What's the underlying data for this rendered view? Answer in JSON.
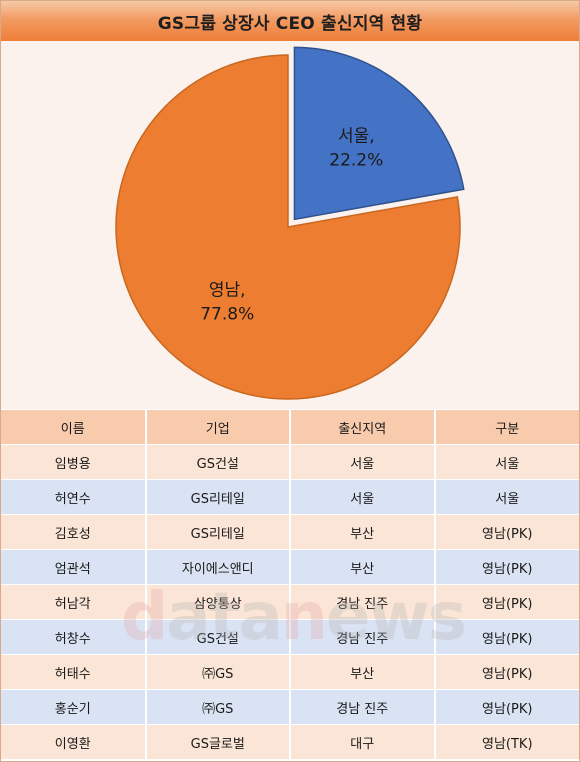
{
  "title": "GS그룹 상장사 CEO 출신지역 현황",
  "colors": {
    "seoul": "#4472c4",
    "yeongnam": "#ed7d31",
    "header_row": "#f8cbad",
    "row_peach": "#fbe5d6",
    "row_blue": "#dae3f3",
    "chart_bg": "#fbf1ed"
  },
  "chart_data": {
    "type": "pie",
    "title": "GS그룹 상장사 CEO 출신지역 현황",
    "slices": [
      {
        "label": "서울",
        "value": 22.2,
        "display": "22.2%",
        "color": "#4472c4"
      },
      {
        "label": "영남",
        "value": 77.8,
        "display": "77.8%",
        "color": "#ed7d31"
      }
    ],
    "legend": "none",
    "data_labels": "category, percent"
  },
  "table": {
    "headers": [
      "이름",
      "기업",
      "출신지역",
      "구분"
    ],
    "rows": [
      [
        "임병용",
        "GS건설",
        "서울",
        "서울"
      ],
      [
        "허연수",
        "GS리테일",
        "서울",
        "서울"
      ],
      [
        "김호성",
        "GS리테일",
        "부산",
        "영남(PK)"
      ],
      [
        "엄관석",
        "자이에스앤디",
        "부산",
        "영남(PK)"
      ],
      [
        "허남각",
        "삼양통상",
        "경남 진주",
        "영남(PK)"
      ],
      [
        "허창수",
        "GS건설",
        "경남 진주",
        "영남(PK)"
      ],
      [
        "허태수",
        "㈜GS",
        "부산",
        "영남(PK)"
      ],
      [
        "홍순기",
        "㈜GS",
        "경남 진주",
        "영남(PK)"
      ],
      [
        "이영환",
        "GS글로벌",
        "대구",
        "영남(TK)"
      ]
    ]
  },
  "watermark": "datanews"
}
